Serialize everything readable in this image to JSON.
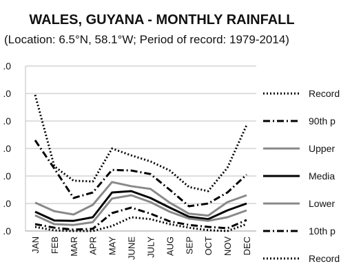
{
  "chart_data": {
    "type": "line",
    "title": "WALES, GUYANA - MONTHLY RAINFALL",
    "subtitle": "(Location: 6.5°N, 58.1°W; Period of record: 1979-2014)",
    "categories": [
      "JAN",
      "FEB",
      "MAR",
      "APR",
      "MAY",
      "JUNE",
      "JULY",
      "AUG",
      "SEP",
      "OCT",
      "NOV",
      "DEC"
    ],
    "y_tick_labels": [
      ".0",
      ".0",
      ".0",
      ".0",
      ".0",
      ".0",
      ".0"
    ],
    "ylim": [
      0,
      600
    ],
    "grid": true,
    "legend_position": "right",
    "series": [
      {
        "name": "Record",
        "style": "dotted",
        "color": "#000000",
        "values": [
          495,
          235,
          183,
          180,
          300,
          275,
          253,
          220,
          160,
          145,
          230,
          385
        ]
      },
      {
        "name": "90th p",
        "style": "dashdot",
        "color": "#000000",
        "values": [
          330,
          227,
          120,
          140,
          222,
          220,
          207,
          150,
          90,
          100,
          140,
          205
        ]
      },
      {
        "name": "Upper",
        "style": "solid",
        "color": "#888888",
        "values": [
          103,
          72,
          60,
          95,
          178,
          163,
          153,
          103,
          63,
          56,
          105,
          130
        ]
      },
      {
        "name": "Media",
        "style": "solid",
        "color": "#000000",
        "values": [
          70,
          38,
          37,
          50,
          140,
          145,
          120,
          85,
          52,
          43,
          75,
          100
        ]
      },
      {
        "name": "Lower",
        "style": "solid",
        "color": "#888888",
        "values": [
          57,
          25,
          22,
          32,
          118,
          130,
          105,
          70,
          45,
          37,
          50,
          75
        ]
      },
      {
        "name": "10th p",
        "style": "dashdot",
        "color": "#000000",
        "values": [
          25,
          12,
          5,
          8,
          65,
          85,
          63,
          35,
          22,
          15,
          10,
          40
        ]
      },
      {
        "name": "Record",
        "style": "dotted",
        "color": "#000000",
        "values": [
          15,
          2,
          0,
          0,
          18,
          50,
          43,
          25,
          12,
          3,
          0,
          25
        ]
      }
    ]
  }
}
